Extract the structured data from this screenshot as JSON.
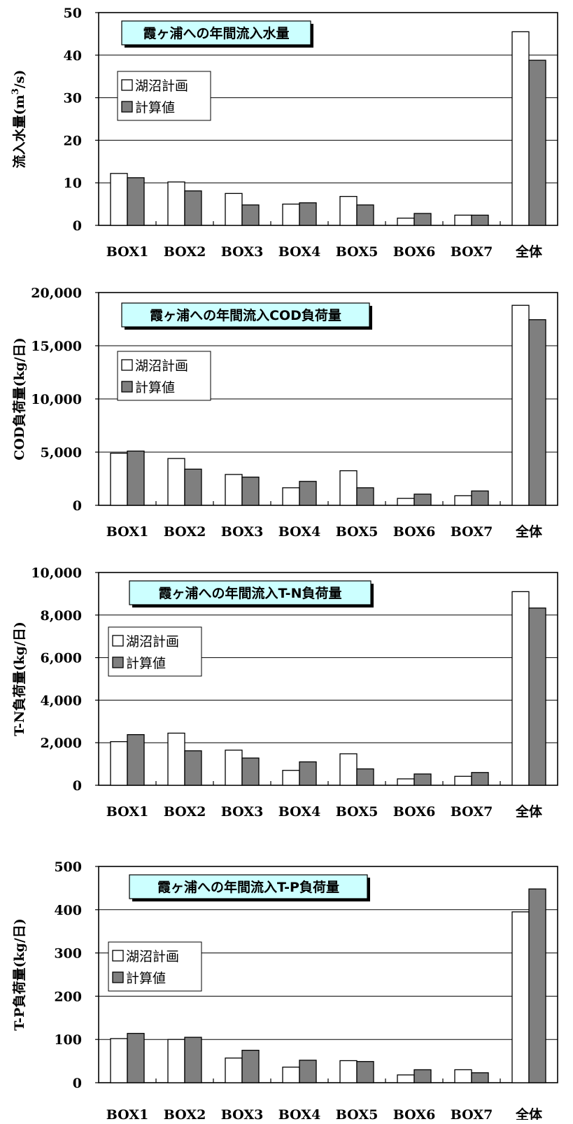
{
  "colors": {
    "planned": "#ffffff",
    "computed": "#7f7f7f",
    "title_bg": "#ccffff",
    "axis": "#000000"
  },
  "legend": [
    "湖沼計画",
    "計算値"
  ],
  "chart_data": [
    {
      "type": "bar",
      "title": "霞ヶ浦への年間流入水量",
      "ylabel": "流入水量(m3/s)",
      "categories": [
        "BOX1",
        "BOX2",
        "BOX3",
        "BOX4",
        "BOX5",
        "BOX6",
        "BOX7",
        "全体"
      ],
      "ylim": [
        0,
        50
      ],
      "yticks": [
        0,
        10,
        20,
        30,
        40,
        50
      ],
      "yticklabels": [
        "0",
        "10",
        "20",
        "30",
        "40",
        "50"
      ],
      "series": [
        {
          "name": "湖沼計画",
          "values": [
            12.2,
            10.2,
            7.5,
            5.0,
            6.8,
            1.7,
            2.4,
            45.5
          ]
        },
        {
          "name": "計算値",
          "values": [
            11.2,
            8.1,
            4.8,
            5.3,
            4.8,
            2.8,
            2.4,
            38.8
          ]
        }
      ]
    },
    {
      "type": "bar",
      "title": "霞ヶ浦への年間流入COD負荷量",
      "ylabel": "COD負荷量(kg/日)",
      "categories": [
        "BOX1",
        "BOX2",
        "BOX3",
        "BOX4",
        "BOX5",
        "BOX6",
        "BOX7",
        "全体"
      ],
      "ylim": [
        0,
        20000
      ],
      "yticks": [
        0,
        5000,
        10000,
        15000,
        20000
      ],
      "yticklabels": [
        "0",
        "5,000",
        "10,000",
        "15,000",
        "20,000"
      ],
      "series": [
        {
          "name": "湖沼計画",
          "values": [
            4900,
            4400,
            2900,
            1650,
            3250,
            650,
            900,
            18800
          ]
        },
        {
          "name": "計算値",
          "values": [
            5100,
            3400,
            2650,
            2250,
            1650,
            1050,
            1350,
            17450
          ]
        }
      ]
    },
    {
      "type": "bar",
      "title": "霞ヶ浦への年間流入T-N負荷量",
      "ylabel": "T-N負荷量(kg/日)",
      "categories": [
        "BOX1",
        "BOX2",
        "BOX3",
        "BOX4",
        "BOX5",
        "BOX6",
        "BOX7",
        "全体"
      ],
      "ylim": [
        0,
        10000
      ],
      "yticks": [
        0,
        2000,
        4000,
        6000,
        8000,
        10000
      ],
      "yticklabels": [
        "0",
        "2,000",
        "4,000",
        "6,000",
        "8,000",
        "10,000"
      ],
      "series": [
        {
          "name": "湖沼計画",
          "values": [
            2050,
            2450,
            1650,
            700,
            1480,
            300,
            420,
            9100
          ]
        },
        {
          "name": "計算値",
          "values": [
            2380,
            1620,
            1280,
            1100,
            770,
            530,
            600,
            8330
          ]
        }
      ]
    },
    {
      "type": "bar",
      "title": "霞ヶ浦への年間流入T-P負荷量",
      "ylabel": "T-P負荷量(kg/日)",
      "categories": [
        "BOX1",
        "BOX2",
        "BOX3",
        "BOX4",
        "BOX5",
        "BOX6",
        "BOX7",
        "全体"
      ],
      "ylim": [
        0,
        500
      ],
      "yticks": [
        0,
        100,
        200,
        300,
        400,
        500
      ],
      "yticklabels": [
        "0",
        "100",
        "200",
        "300",
        "400",
        "500"
      ],
      "series": [
        {
          "name": "湖沼計画",
          "values": [
            102,
            100,
            57,
            36,
            51,
            18,
            30,
            395
          ]
        },
        {
          "name": "計算値",
          "values": [
            114,
            105,
            75,
            52,
            49,
            30,
            23,
            448
          ]
        }
      ]
    }
  ]
}
